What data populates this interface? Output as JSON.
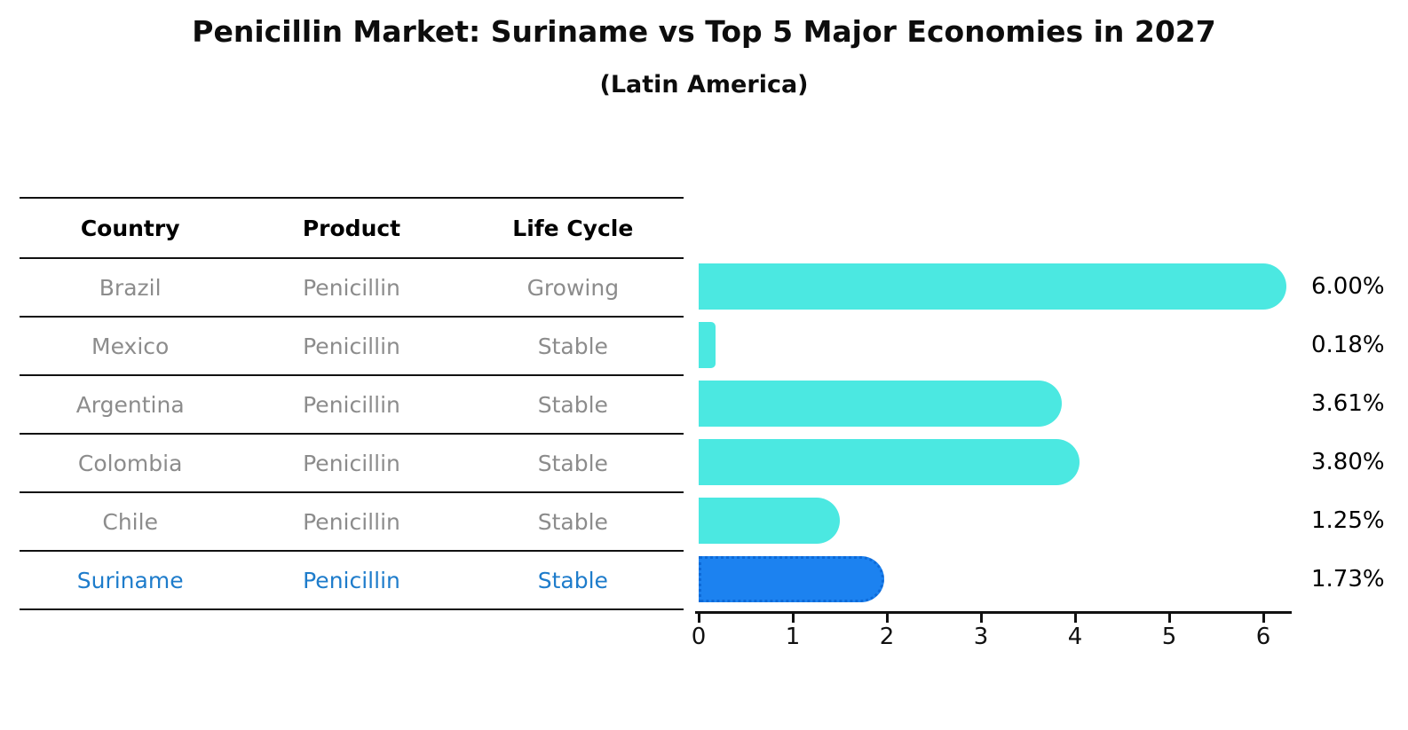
{
  "title": "Penicillin Market: Suriname vs Top 5 Major Economies in 2027",
  "subtitle": "(Latin America)",
  "table": {
    "headers": [
      "Country",
      "Product",
      "Life Cycle"
    ]
  },
  "rows": [
    {
      "country": "Brazil",
      "product": "Penicillin",
      "life_cycle": "Growing",
      "value": 6.0,
      "value_label": "6.00%",
      "highlight": false
    },
    {
      "country": "Mexico",
      "product": "Penicillin",
      "life_cycle": "Stable",
      "value": 0.18,
      "value_label": "0.18%",
      "highlight": false
    },
    {
      "country": "Argentina",
      "product": "Penicillin",
      "life_cycle": "Stable",
      "value": 3.61,
      "value_label": "3.61%",
      "highlight": false
    },
    {
      "country": "Colombia",
      "product": "Penicillin",
      "life_cycle": "Stable",
      "value": 3.8,
      "value_label": "3.80%",
      "highlight": false
    },
    {
      "country": "Chile",
      "product": "Penicillin",
      "life_cycle": "Stable",
      "value": 1.25,
      "value_label": "1.25%",
      "highlight": false
    },
    {
      "country": "Suriname",
      "product": "Penicillin",
      "life_cycle": "Stable",
      "value": 1.73,
      "value_label": "1.73%",
      "highlight": true
    }
  ],
  "axis": {
    "tick_labels": [
      "0",
      "1",
      "2",
      "3",
      "4",
      "5",
      "6"
    ],
    "min": 0,
    "max": 6.35
  },
  "colors": {
    "bar": "#4BE8E1",
    "highlight_bar": "#1C82F0",
    "highlight_border": "#0D6AD8",
    "highlight_text": "#1E7CCB",
    "muted_text": "#8C8C8C",
    "text": "#000000"
  },
  "chart_data": {
    "type": "bar",
    "orientation": "horizontal",
    "title": "Penicillin Market: Suriname vs Top 5 Major Economies in 2027",
    "subtitle": "(Latin America)",
    "categories": [
      "Brazil",
      "Mexico",
      "Argentina",
      "Colombia",
      "Chile",
      "Suriname"
    ],
    "values": [
      6.0,
      0.18,
      3.61,
      3.8,
      1.25,
      1.73
    ],
    "value_labels": [
      "6.00%",
      "0.18%",
      "3.61%",
      "3.80%",
      "1.25%",
      "1.73%"
    ],
    "series_meta": {
      "product": [
        "Penicillin",
        "Penicillin",
        "Penicillin",
        "Penicillin",
        "Penicillin",
        "Penicillin"
      ],
      "life_cycle": [
        "Growing",
        "Stable",
        "Stable",
        "Stable",
        "Stable",
        "Stable"
      ]
    },
    "highlighted_category": "Suriname",
    "xlabel": "",
    "ylabel": "",
    "xlim": [
      0,
      6.35
    ],
    "xticks": [
      0,
      1,
      2,
      3,
      4,
      5,
      6
    ],
    "grid": false,
    "legend": false
  }
}
